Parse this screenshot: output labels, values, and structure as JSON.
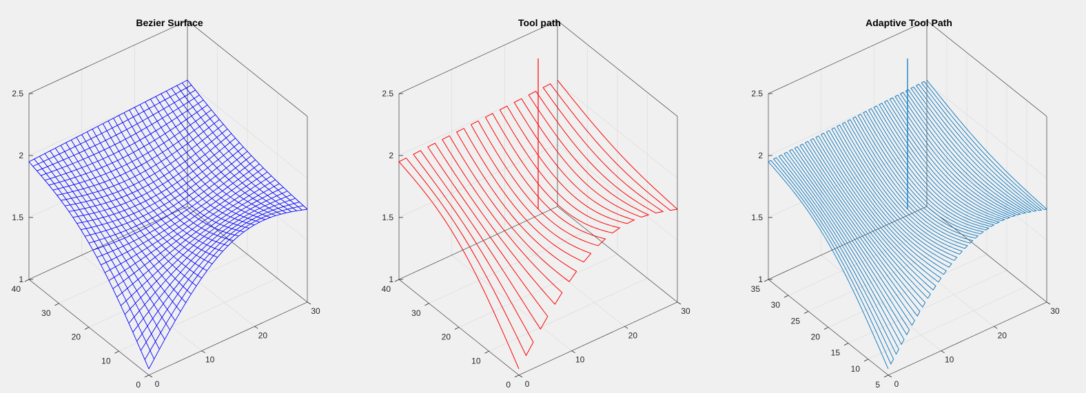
{
  "chart_data": [
    {
      "type": "mesh3d",
      "title": "Bezier Surface",
      "color": "#0000ff",
      "style": "wireframe-mesh",
      "x_ticks": [
        "0",
        "10",
        "20",
        "30"
      ],
      "y_ticks": [
        "0",
        "10",
        "20",
        "30",
        "40"
      ],
      "z_ticks": [
        "1",
        "1.5",
        "2",
        "2.5"
      ],
      "xlim": [
        0,
        30
      ],
      "ylim": [
        0,
        40
      ],
      "zlim": [
        1,
        2.5
      ],
      "grid": true,
      "surface": {
        "corner_x0_y0_z": 1.05,
        "corner_x30_y0_z": 1.75,
        "corner_x0_y40_z": 1.95,
        "corner_x30_y40_z": 2.02,
        "saddle_center_z": 1.82
      }
    },
    {
      "type": "line3d",
      "title": "Tool path",
      "color": "#ff0000",
      "style": "zigzag-passes",
      "x_ticks": [
        "0",
        "10",
        "20",
        "30"
      ],
      "y_ticks": [
        "0",
        "10",
        "20",
        "30",
        "40"
      ],
      "z_ticks": [
        "1",
        "1.5",
        "2",
        "2.5"
      ],
      "xlim": [
        0,
        30
      ],
      "ylim": [
        0,
        40
      ],
      "zlim": [
        1,
        2.5
      ],
      "grid": true
    },
    {
      "type": "line3d",
      "title": "Adaptive Tool Path",
      "color": "#0072bd",
      "style": "dense-zigzag-passes",
      "x_ticks": [
        "0",
        "10",
        "20",
        "30"
      ],
      "y_ticks": [
        "5",
        "10",
        "15",
        "20",
        "25",
        "30",
        "35"
      ],
      "z_ticks": [
        "1",
        "1.5",
        "2",
        "2.5"
      ],
      "xlim": [
        0,
        30
      ],
      "ylim": [
        5,
        35
      ],
      "zlim": [
        1,
        2.5
      ],
      "grid": true
    }
  ]
}
